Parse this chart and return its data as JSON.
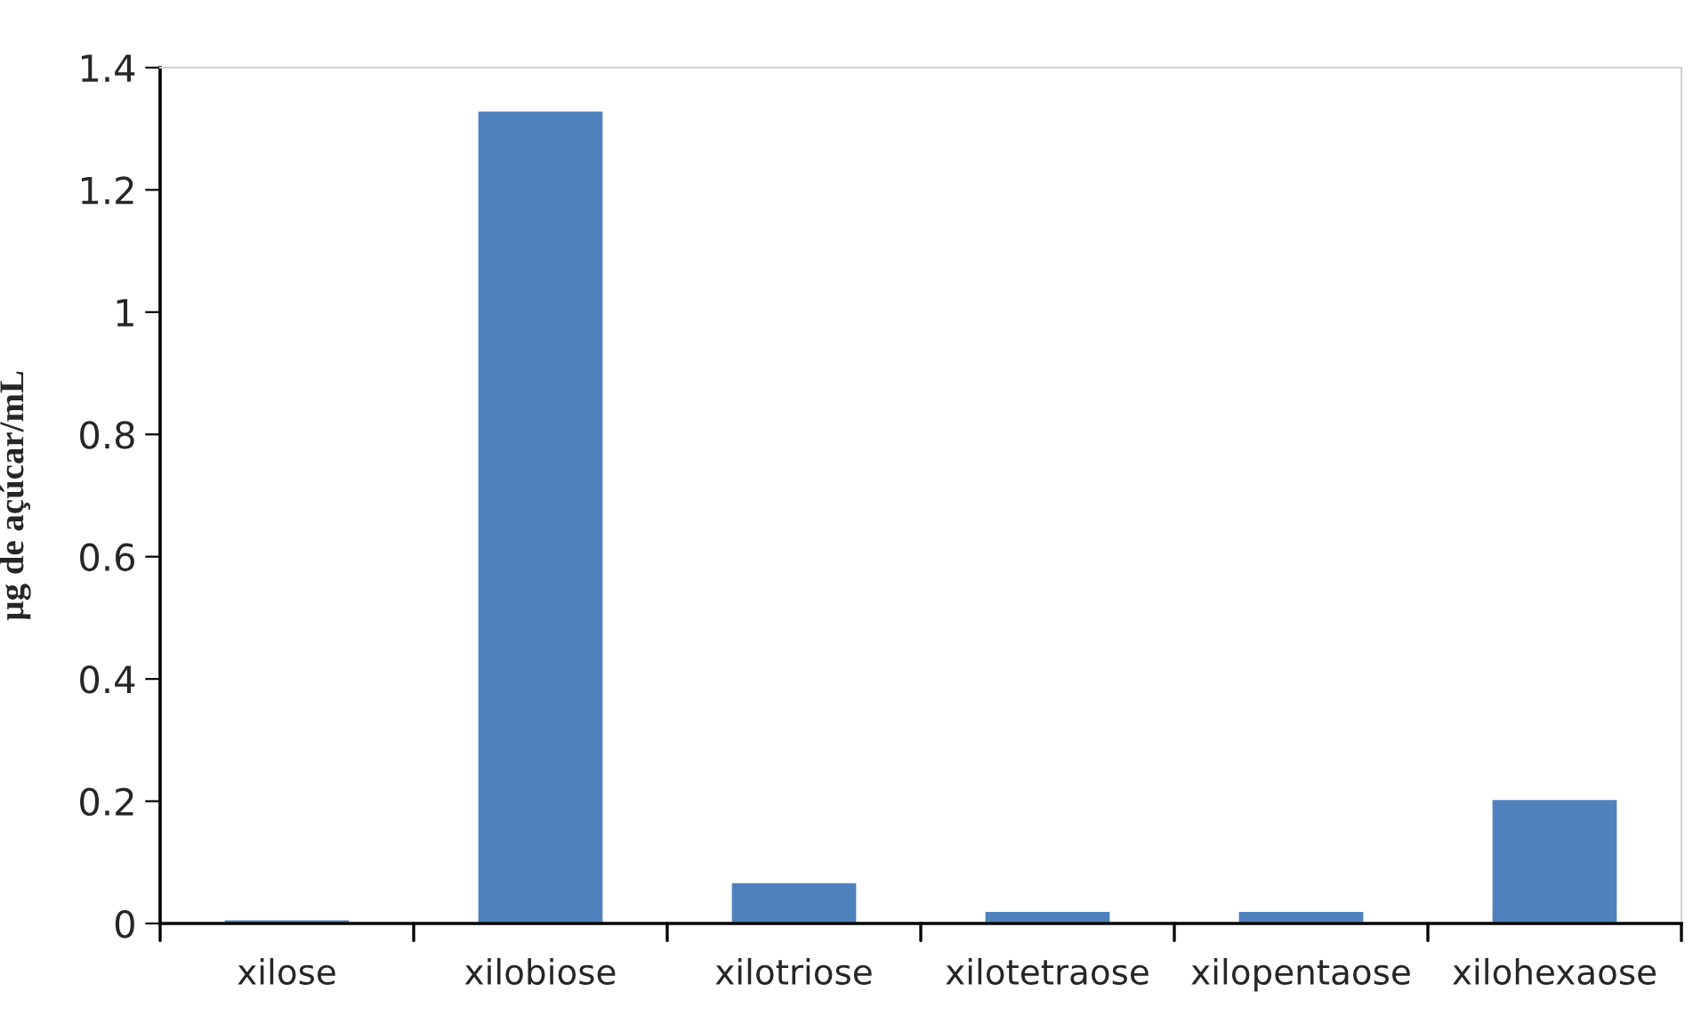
{
  "chart_data": {
    "type": "bar",
    "ylabel": "µg de açúcar/mL",
    "categories": [
      "xilose",
      "xilobiose",
      "xilotriose",
      "xilotetraose",
      "xilopentaose",
      "xilohexaose"
    ],
    "values": [
      0.007,
      1.33,
      0.068,
      0.021,
      0.021,
      0.204
    ],
    "color": "#4f81bd",
    "ylim": [
      0,
      1.4
    ],
    "yticks": [
      0,
      0.2,
      0.4,
      0.6,
      0.8,
      1,
      1.2,
      1.4
    ],
    "grid": false
  }
}
